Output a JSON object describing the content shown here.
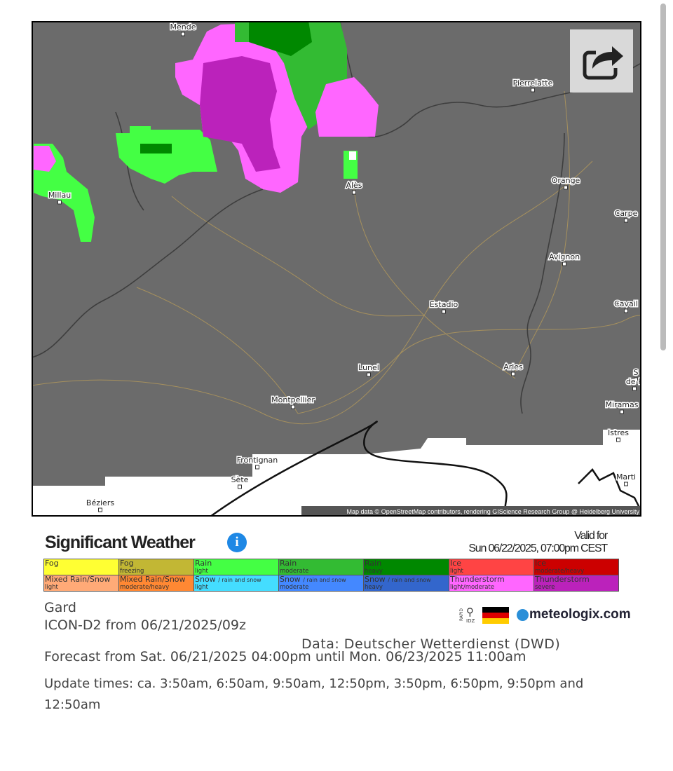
{
  "map": {
    "cities": [
      "Mende",
      "Pierrelatte",
      "Alès",
      "Orange",
      "Millau",
      "Carpe",
      "Avignon",
      "Estadio",
      "Cavail",
      "Lunel",
      "Arles",
      "S",
      "de-P",
      "Montpellier",
      "Miramas",
      "Istres",
      "Frontignan",
      "Sète",
      "Marti",
      "Béziers"
    ],
    "attribution": "Map data © OpenStreetMap contributors, rendering GIScience Research Group @ Heidelberg University"
  },
  "header": {
    "title": "Significant Weather",
    "valid_label": "Valid for",
    "valid_time": "Sun 06/22/2025, 07:00pm CEST"
  },
  "legend": {
    "rows": [
      [
        {
          "label": "Fog",
          "color": "#ffff33"
        },
        {
          "label": "Fog",
          "sub": "freezing",
          "color": "#c2b734"
        },
        {
          "label": "Rain",
          "sub": "light",
          "color": "#44ff44"
        },
        {
          "label": "Rain",
          "sub": "moderate",
          "color": "#33bb33"
        },
        {
          "label": "Rain",
          "sub": "heavy",
          "color": "#008800"
        },
        {
          "label": "Ice",
          "sub": "light",
          "color": "#ff4444"
        },
        {
          "label": "Ice",
          "sub": "moderate/heavy",
          "color": "#cc0000"
        }
      ],
      [
        {
          "label": "Mixed Rain/Snow",
          "sub": "light",
          "color": "#ffaa77"
        },
        {
          "label": "Mixed Rain/Snow",
          "sub": "moderate/heavy",
          "color": "#ff8833"
        },
        {
          "label": "Snow",
          "note": "/ rain and snow",
          "sub": "light",
          "color": "#44ddff"
        },
        {
          "label": "Snow",
          "note": "/ rain and snow",
          "sub": "moderate",
          "color": "#4488ff"
        },
        {
          "label": "Snow",
          "note": "/ rain and snow",
          "sub": "heavy",
          "color": "#3366cc"
        },
        {
          "label": "Thunderstorm",
          "sub": "light/moderate",
          "color": "#ff66ff"
        },
        {
          "label": "Thunderstorm",
          "sub": "severe",
          "color": "#bb22bb"
        }
      ]
    ]
  },
  "info": {
    "region": "Gard",
    "model": "ICON-D2 from 06/21/2025/09z",
    "source": "Data: Deutscher Wetterdienst (DWD)",
    "forecast": "Forecast from Sat. 06/21/2025 04:00pm until Mon. 06/23/2025 11:00am",
    "updates": "Update times: ca. 3:50am, 6:50am, 9:50am, 12:50pm, 3:50pm, 6:50pm, 9:50pm and 12:50am"
  },
  "logos": {
    "rapid": "RAPID",
    "idz": "IDZ",
    "brand": "meteologix.com"
  }
}
